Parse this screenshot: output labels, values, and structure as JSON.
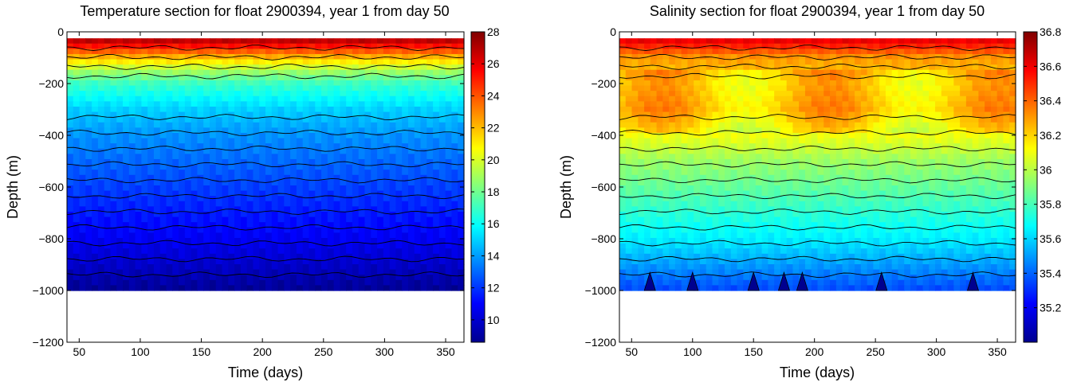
{
  "chart_data": [
    {
      "type": "heatmap",
      "title": "Temperature section for float 2900394, year 1 from day 50",
      "xlabel": "Time (days)",
      "ylabel": "Depth (m)",
      "xlim": [
        40,
        365
      ],
      "ylim": [
        -1200,
        0
      ],
      "xticks": [
        "50",
        "100",
        "150",
        "200",
        "250",
        "300",
        "350"
      ],
      "yticks": [
        "0",
        "−200",
        "−400",
        "−600",
        "−800",
        "−1000",
        "−1200"
      ],
      "colorbar": {
        "min": 8.6,
        "max": 28,
        "ticks": [
          "10",
          "12",
          "14",
          "16",
          "18",
          "20",
          "22",
          "24",
          "26",
          "28"
        ]
      },
      "colormap": "jet",
      "data_depth_range": [
        -1000,
        -25
      ],
      "profile": {
        "depths": [
          -25,
          -60,
          -100,
          -150,
          -200,
          -300,
          -400,
          -500,
          -600,
          -700,
          -800,
          -900,
          -1000
        ],
        "values": [
          27.5,
          25.0,
          22.0,
          19.0,
          17.0,
          15.0,
          13.8,
          13.0,
          12.2,
          11.5,
          10.8,
          10.0,
          9.0
        ]
      }
    },
    {
      "type": "heatmap",
      "title": "Salinity section for float 2900394, year 1 from day 50",
      "xlabel": "Time (days)",
      "ylabel": "Depth (m)",
      "xlim": [
        40,
        365
      ],
      "ylim": [
        -1200,
        0
      ],
      "xticks": [
        "50",
        "100",
        "150",
        "200",
        "250",
        "300",
        "350"
      ],
      "yticks": [
        "0",
        "−200",
        "−400",
        "−600",
        "−800",
        "−1000",
        "−1200"
      ],
      "colorbar": {
        "min": 35.0,
        "max": 36.8,
        "ticks": [
          "35.2",
          "35.4",
          "35.6",
          "35.8",
          "36",
          "36.2",
          "36.4",
          "36.6",
          "36.8"
        ]
      },
      "colormap": "jet",
      "data_depth_range": [
        -1000,
        -25
      ],
      "profile": {
        "depths": [
          -25,
          -60,
          -100,
          -150,
          -200,
          -300,
          -400,
          -500,
          -600,
          -700,
          -800,
          -900,
          -1000
        ],
        "values": [
          36.65,
          36.5,
          36.3,
          36.25,
          36.2,
          36.25,
          36.1,
          35.95,
          35.85,
          35.75,
          35.65,
          35.5,
          35.35
        ]
      },
      "dips": [
        65,
        100,
        150,
        175,
        190,
        255,
        330
      ]
    }
  ]
}
